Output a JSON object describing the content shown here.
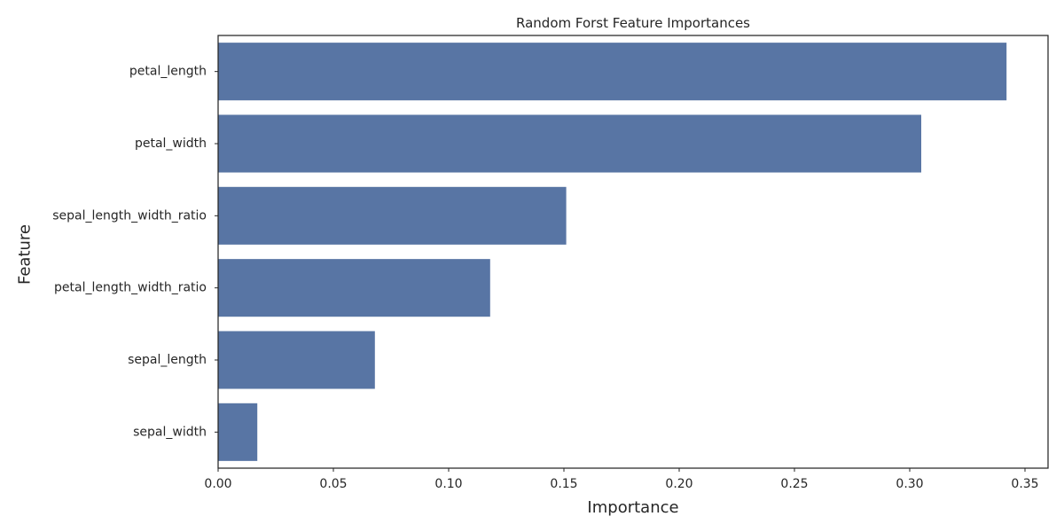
{
  "chart_data": {
    "type": "bar",
    "orientation": "horizontal",
    "title": "Random Forst Feature Importances",
    "xlabel": "Importance",
    "ylabel": "Feature",
    "categories": [
      "petal_length",
      "petal_width",
      "sepal_length_width_ratio",
      "petal_length_width_ratio",
      "sepal_length",
      "sepal_width"
    ],
    "values": [
      0.342,
      0.305,
      0.151,
      0.118,
      0.068,
      0.017
    ],
    "xlim": [
      0,
      0.36
    ],
    "xticks": [
      "0.00",
      "0.05",
      "0.10",
      "0.15",
      "0.20",
      "0.25",
      "0.30",
      "0.35"
    ],
    "grid": false,
    "bar_color": "#5875a4"
  }
}
